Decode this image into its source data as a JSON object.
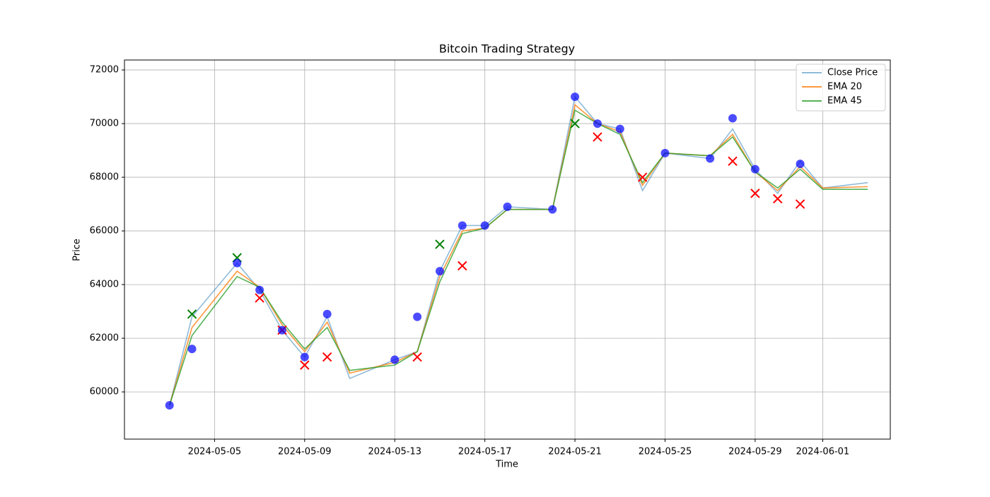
{
  "chart_data": {
    "type": "line",
    "title": "Bitcoin Trading Strategy",
    "x_label": "Time",
    "y_label": "Price",
    "x": [
      "2024-05-03",
      "2024-05-04",
      "2024-05-06",
      "2024-05-07",
      "2024-05-08",
      "2024-05-09",
      "2024-05-10",
      "2024-05-11",
      "2024-05-13",
      "2024-05-14",
      "2024-05-15",
      "2024-05-16",
      "2024-05-17",
      "2024-05-18",
      "2024-05-20",
      "2024-05-21",
      "2024-05-22",
      "2024-05-23",
      "2024-05-24",
      "2024-05-25",
      "2024-05-27",
      "2024-05-28",
      "2024-05-29",
      "2024-05-30",
      "2024-05-31",
      "2024-06-01",
      "2024-06-03"
    ],
    "series": [
      {
        "name": "Close Price",
        "color": "#1f77b4",
        "opacity": 0.5,
        "values": [
          59500,
          62800,
          64800,
          63800,
          62300,
          61300,
          62800,
          60500,
          61200,
          61500,
          64500,
          66200,
          66200,
          66900,
          66800,
          71000,
          70000,
          69800,
          67500,
          68900,
          68700,
          69800,
          68300,
          67400,
          68600,
          67600,
          67800
        ]
      },
      {
        "name": "EMA 20",
        "color": "#ff7f0e",
        "opacity": 0.8,
        "values": [
          59500,
          62400,
          64500,
          63900,
          62500,
          61500,
          62600,
          60700,
          61100,
          61500,
          64300,
          66000,
          66100,
          66800,
          66800,
          70700,
          70000,
          69700,
          67700,
          68900,
          68800,
          69600,
          68200,
          67500,
          68400,
          67600,
          67650
        ]
      },
      {
        "name": "EMA 45",
        "color": "#2ca02c",
        "opacity": 0.8,
        "values": [
          59500,
          62100,
          64300,
          63900,
          62600,
          61600,
          62400,
          60800,
          61000,
          61500,
          64100,
          65900,
          66100,
          66800,
          66800,
          70500,
          70000,
          69600,
          67800,
          68900,
          68800,
          69500,
          68200,
          67600,
          68300,
          67550,
          67550
        ]
      }
    ],
    "markers": [
      {
        "marker": "x",
        "color": "green",
        "x": [
          "2024-05-04",
          "2024-05-06",
          "2024-05-15",
          "2024-05-21"
        ],
        "values": [
          62900,
          65000,
          65500,
          70000
        ]
      },
      {
        "marker": "x",
        "color": "red",
        "x": [
          "2024-05-07",
          "2024-05-08",
          "2024-05-09",
          "2024-05-10",
          "2024-05-14",
          "2024-05-16",
          "2024-05-22",
          "2024-05-24",
          "2024-05-28",
          "2024-05-29",
          "2024-05-30",
          "2024-05-31"
        ],
        "values": [
          63500,
          62300,
          61000,
          61300,
          61300,
          64700,
          69500,
          68000,
          68600,
          67400,
          67200,
          67000
        ]
      },
      {
        "marker": "o",
        "color": "blue",
        "x": [
          "2024-05-03",
          "2024-05-04",
          "2024-05-06",
          "2024-05-07",
          "2024-05-08",
          "2024-05-09",
          "2024-05-10",
          "2024-05-13",
          "2024-05-14",
          "2024-05-15",
          "2024-05-16",
          "2024-05-17",
          "2024-05-18",
          "2024-05-20",
          "2024-05-21",
          "2024-05-22",
          "2024-05-23",
          "2024-05-25",
          "2024-05-27",
          "2024-05-28",
          "2024-05-29",
          "2024-05-31"
        ],
        "values": [
          59500,
          61600,
          64800,
          63800,
          62300,
          61300,
          62900,
          61200,
          62800,
          64500,
          66200,
          66200,
          66900,
          66800,
          71000,
          70000,
          69800,
          68900,
          68700,
          70200,
          68300,
          68500
        ]
      }
    ],
    "xlim": [
      "2024-05-01",
      "2024-06-04"
    ],
    "xticks": [
      "2024-05-05",
      "2024-05-09",
      "2024-05-13",
      "2024-05-17",
      "2024-05-21",
      "2024-05-25",
      "2024-05-29",
      "2024-06-01"
    ],
    "ylim": [
      58240,
      72370
    ],
    "yticks": [
      60000,
      62000,
      64000,
      66000,
      68000,
      70000,
      72000
    ],
    "grid": true,
    "legend": "upper right"
  }
}
